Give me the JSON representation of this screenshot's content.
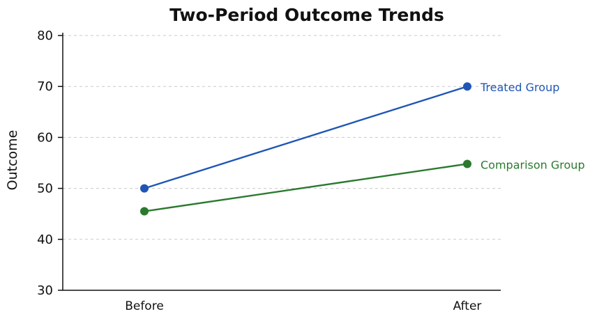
{
  "chart_data": {
    "type": "line",
    "title": "Two-Period Outcome Trends",
    "xlabel": "",
    "ylabel": "Outcome",
    "categories": [
      "Before",
      "After"
    ],
    "ylim": [
      30,
      80
    ],
    "yticks": [
      30,
      40,
      50,
      60,
      70,
      80
    ],
    "grid": true,
    "series": [
      {
        "name": "Treated Group",
        "values": [
          50,
          70
        ],
        "color": "#1f56b5"
      },
      {
        "name": "Comparison Group",
        "values": [
          45.5,
          54.8
        ],
        "color": "#2a7a2e"
      }
    ]
  }
}
